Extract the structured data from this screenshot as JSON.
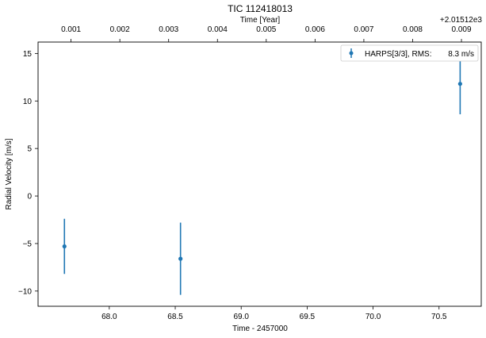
{
  "chart_data": {
    "type": "scatter",
    "title": "TIC 112418013",
    "xlabel": "Time - 2457000",
    "ylabel": "Radial Velocity [m/s]",
    "top_xlabel": "Time [Year]",
    "top_offset_label": "+2.01512e3",
    "xlim": [
      67.46,
      70.82
    ],
    "ylim": [
      -11.6,
      16.2
    ],
    "x_ticks": [
      68.0,
      68.5,
      69.0,
      69.5,
      70.0,
      70.5
    ],
    "x_tick_labels": [
      "68.0",
      "68.5",
      "69.0",
      "69.5",
      "70.0",
      "70.5"
    ],
    "y_ticks": [
      -10,
      -5,
      0,
      5,
      10,
      15
    ],
    "y_tick_labels": [
      "−10",
      "−5",
      "0",
      "5",
      "10",
      "15"
    ],
    "top_ticks": [
      {
        "x": 67.71,
        "label": "0.001"
      },
      {
        "x": 68.08,
        "label": "0.002"
      },
      {
        "x": 68.45,
        "label": "0.003"
      },
      {
        "x": 68.82,
        "label": "0.004"
      },
      {
        "x": 69.19,
        "label": "0.005"
      },
      {
        "x": 69.56,
        "label": "0.006"
      },
      {
        "x": 69.93,
        "label": "0.007"
      },
      {
        "x": 70.3,
        "label": "0.008"
      },
      {
        "x": 70.67,
        "label": "0.009"
      }
    ],
    "series": [
      {
        "name": "HARPS[3/3], RMS:",
        "rms_label": "8.3 m/s",
        "color": "#1f77b4",
        "points": [
          {
            "x": 67.66,
            "y": -5.3,
            "err": 2.9
          },
          {
            "x": 68.54,
            "y": -6.6,
            "err": 3.8
          },
          {
            "x": 70.66,
            "y": 11.8,
            "err": 3.2
          }
        ]
      }
    ],
    "legend_position": "top-right",
    "grid": false
  }
}
